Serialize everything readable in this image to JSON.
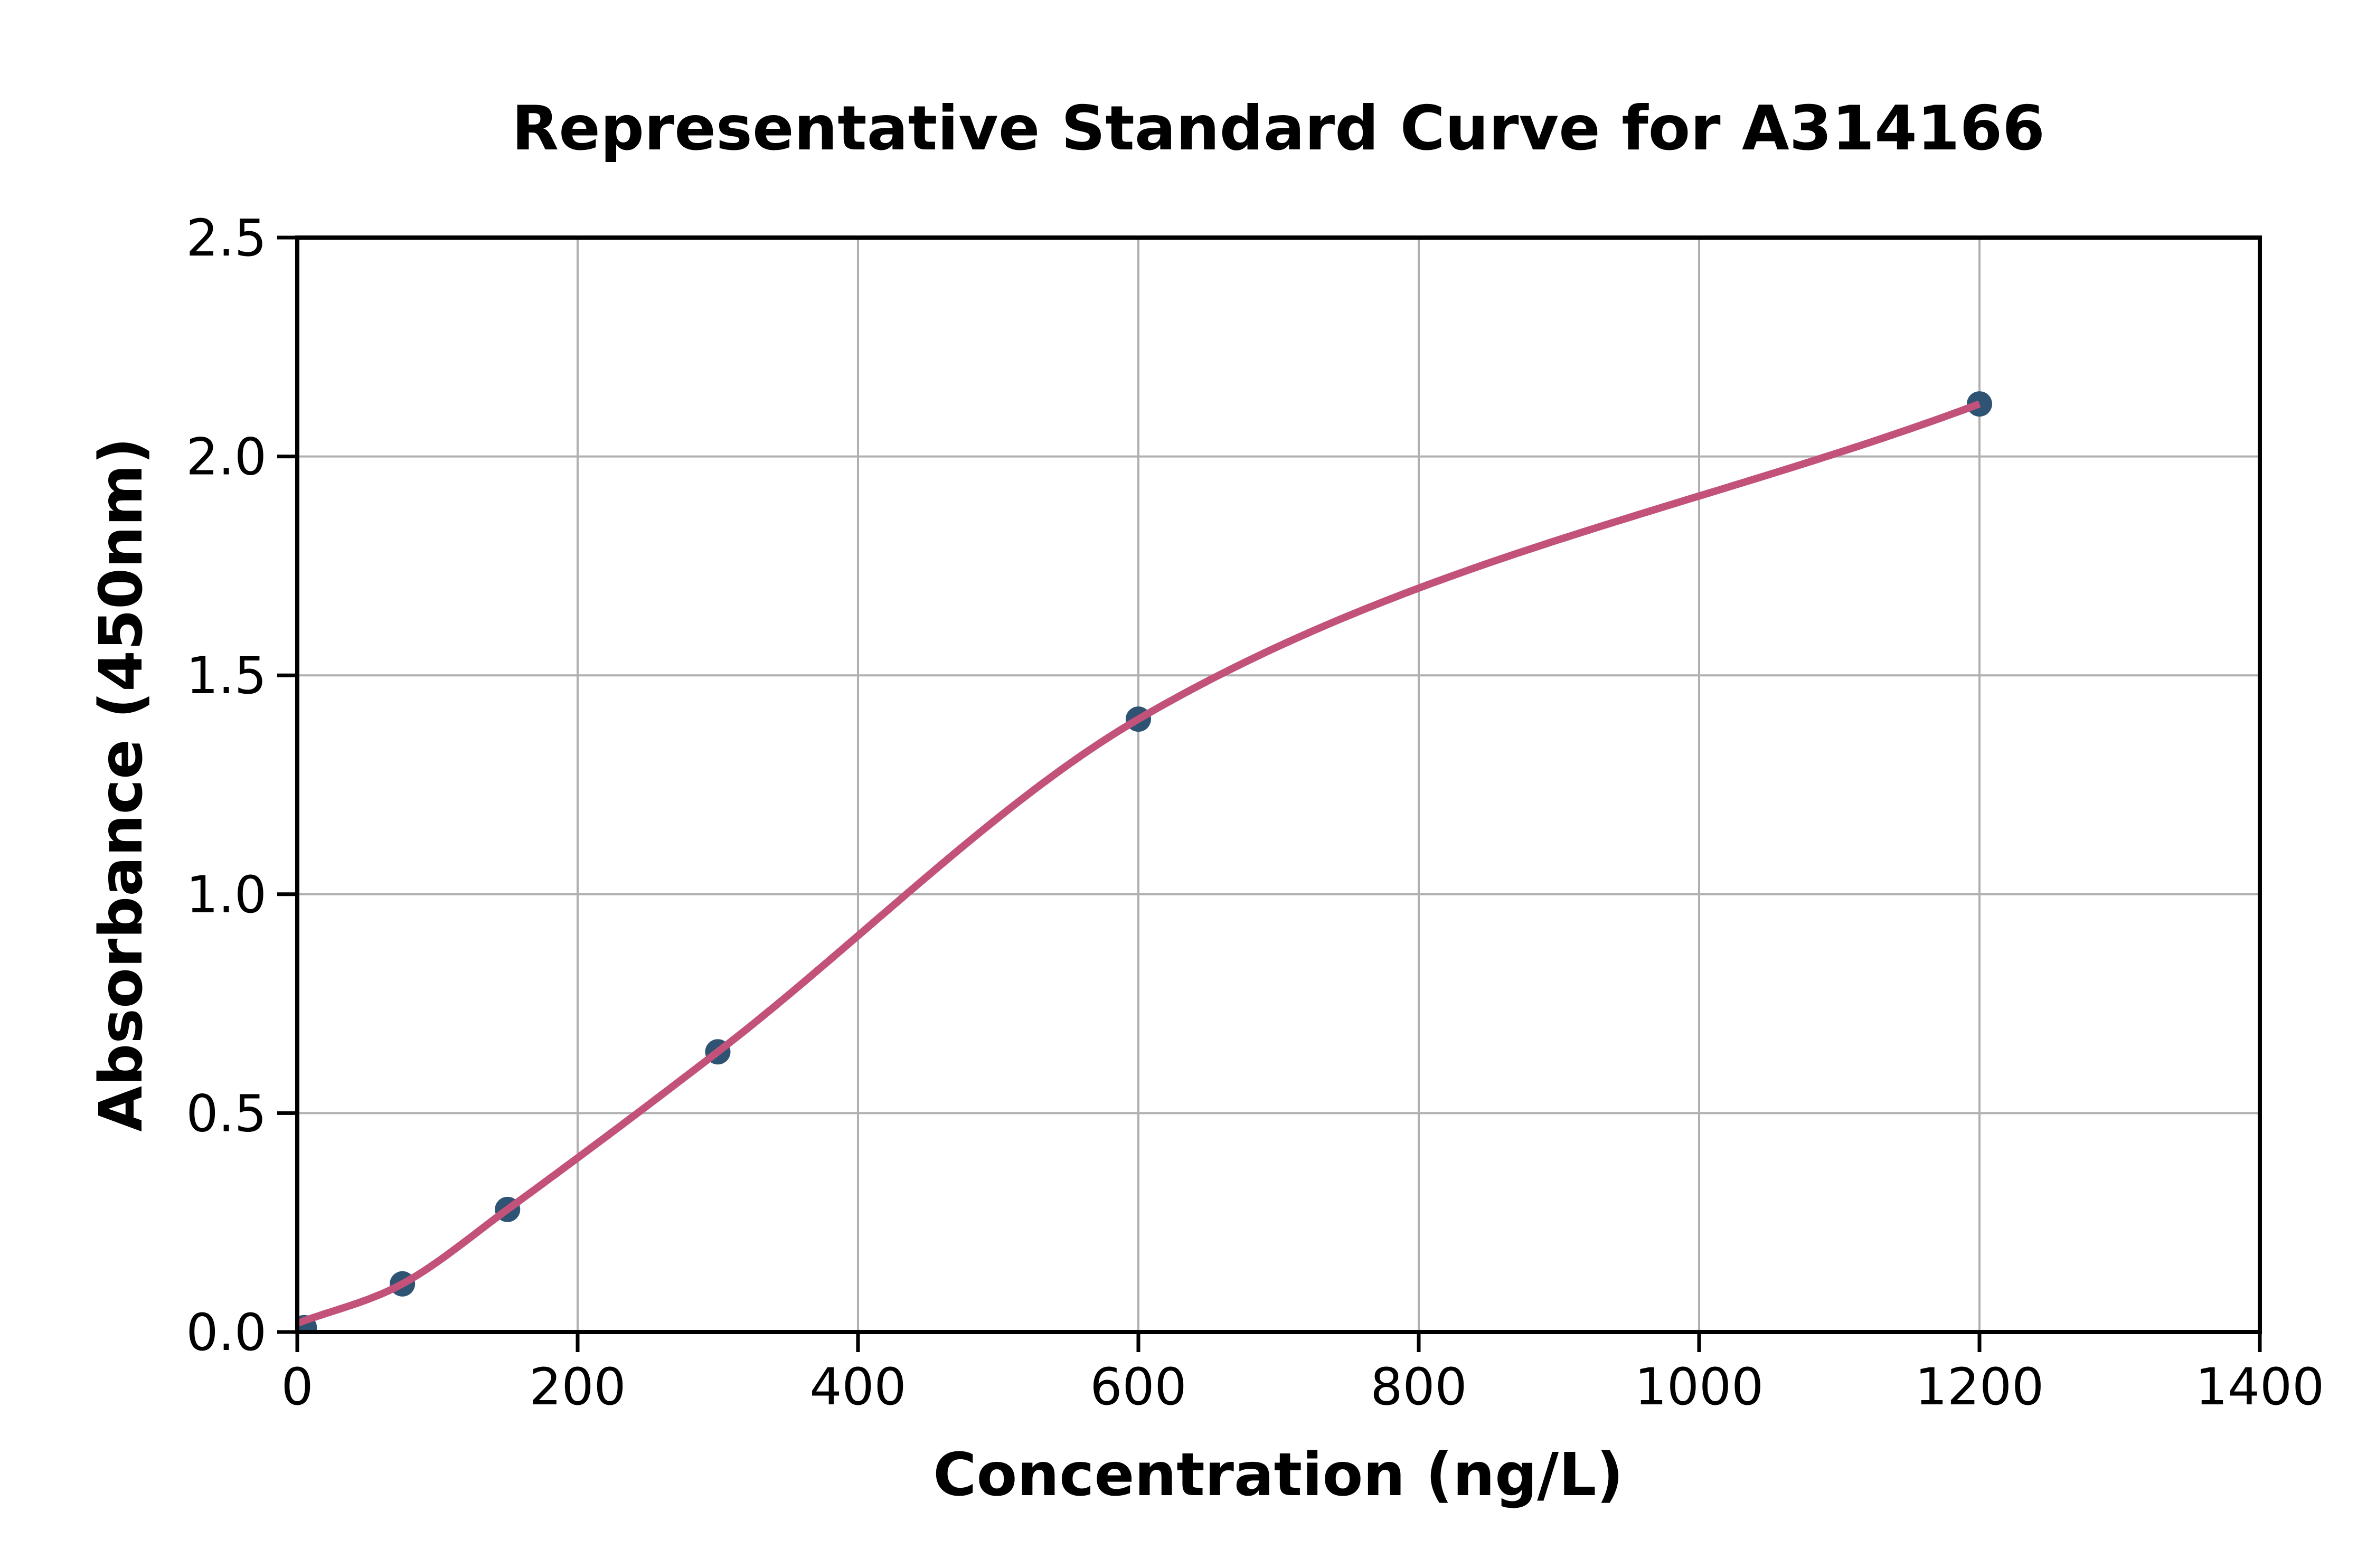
{
  "figure": {
    "background": "#ffffff"
  },
  "chart_data": {
    "type": "scatter",
    "title": "Representative Standard Curve for A314166",
    "xlabel": "Concentration (ng/L)",
    "ylabel": "Absorbance (450nm)",
    "xlim": [
      0,
      1400
    ],
    "ylim": [
      0,
      2.5
    ],
    "x_ticks": [
      0,
      200,
      400,
      600,
      800,
      1000,
      1200,
      1400
    ],
    "y_ticks": [
      0,
      0.5,
      1,
      1.5,
      2,
      2.5
    ],
    "grid": true,
    "legend_position": "none",
    "points": [
      {
        "x": 5,
        "y": 0.01
      },
      {
        "x": 75,
        "y": 0.11
      },
      {
        "x": 150,
        "y": 0.28
      },
      {
        "x": 300,
        "y": 0.64
      },
      {
        "x": 600,
        "y": 1.4
      },
      {
        "x": 1200,
        "y": 2.12
      }
    ],
    "fit_curve": {
      "x": [
        0,
        75,
        150,
        300,
        600,
        1200
      ],
      "y": [
        0.02,
        0.11,
        0.28,
        0.64,
        1.4,
        2.12
      ]
    },
    "colors": {
      "curve": "#c2527a",
      "point": "#2f5373",
      "grid": "#b0b0b0",
      "axis": "#000000",
      "text": "#000000",
      "background": "#ffffff"
    }
  }
}
